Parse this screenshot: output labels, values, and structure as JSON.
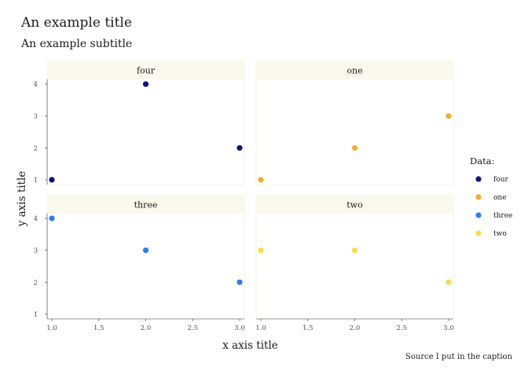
{
  "chart_data": {
    "type": "scatter",
    "title": "An example title",
    "subtitle": "An example subtitle",
    "caption": "Source I put in the caption",
    "xlabel": "x axis title",
    "ylabel": "y axis title",
    "xlim": [
      0.95,
      3.05
    ],
    "ylim": [
      0.85,
      4.15
    ],
    "xticks": [
      1.0,
      1.5,
      2.0,
      2.5,
      3.0
    ],
    "xtick_labels": [
      "1.0",
      "1.5",
      "2.0",
      "2.5",
      "3.0"
    ],
    "yticks": [
      1,
      2,
      3,
      4
    ],
    "ytick_labels": [
      "1",
      "2",
      "3",
      "4"
    ],
    "grid": false,
    "facet_layout": "2x2 grid, shared axes",
    "legend": {
      "title": "Data:",
      "position": "right"
    },
    "series": [
      {
        "name": "four",
        "color": "#0d1478",
        "x": [
          1,
          2,
          3
        ],
        "y": [
          1,
          4,
          2
        ]
      },
      {
        "name": "one",
        "color": "#f0ad38",
        "x": [
          1,
          2,
          3
        ],
        "y": [
          1,
          2,
          3
        ]
      },
      {
        "name": "three",
        "color": "#2f7cf0",
        "x": [
          1,
          2,
          3
        ],
        "y": [
          4,
          3,
          2
        ]
      },
      {
        "name": "two",
        "color": "#fcd94e",
        "x": [
          1,
          2,
          3
        ],
        "y": [
          3,
          3,
          2
        ]
      }
    ],
    "strip_background": "#fbf8ec"
  }
}
